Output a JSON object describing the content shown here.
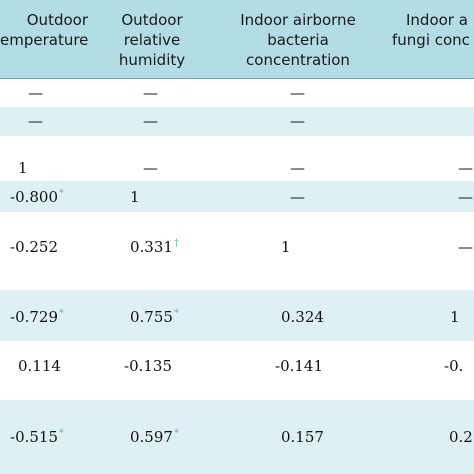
{
  "headers": {
    "outdoor_temperature": [
      "Outdoor",
      "emperature"
    ],
    "outdoor_humidity": [
      "Outdoor",
      "relative",
      "humidity"
    ],
    "indoor_bacteria": [
      "Indoor airborne",
      "bacteria",
      "concentration"
    ],
    "indoor_fungi": [
      "Indoor a",
      "fungi conc"
    ]
  },
  "cells": {
    "r1": {
      "c1": "—",
      "c2": "—",
      "c3": "—",
      "c4": ""
    },
    "r2": {
      "c1": "—",
      "c2": "—",
      "c3": "—",
      "c4": ""
    },
    "r3": {
      "c1": "1",
      "c2": "—",
      "c3": "—",
      "c4": "—"
    },
    "r4": {
      "c1": "-0.800",
      "c1_sig": "*",
      "c2": "1",
      "c3": "—",
      "c4": "—"
    },
    "r5": {
      "c1": "-0.252",
      "c2": "0.331",
      "c2_sig": "†",
      "c3": "1",
      "c4": "—"
    },
    "r6": {
      "c1": "-0.729",
      "c1_sig": "*",
      "c2": "0.755",
      "c2_sig": "*",
      "c3": "0.324",
      "c4": "1"
    },
    "r7": {
      "c1": "0.114",
      "c2": "-0.135",
      "c3": "-0.141",
      "c4": "-0."
    },
    "r8": {
      "c1": "-0.515",
      "c1_sig": "*",
      "c2": "0.597",
      "c2_sig": "*",
      "c3": "0.157",
      "c4": "0.2"
    }
  },
  "colors": {
    "header_background": "#b3dde6",
    "row_band": "#dff0f4",
    "significance_marker": "#5bb8d0"
  }
}
